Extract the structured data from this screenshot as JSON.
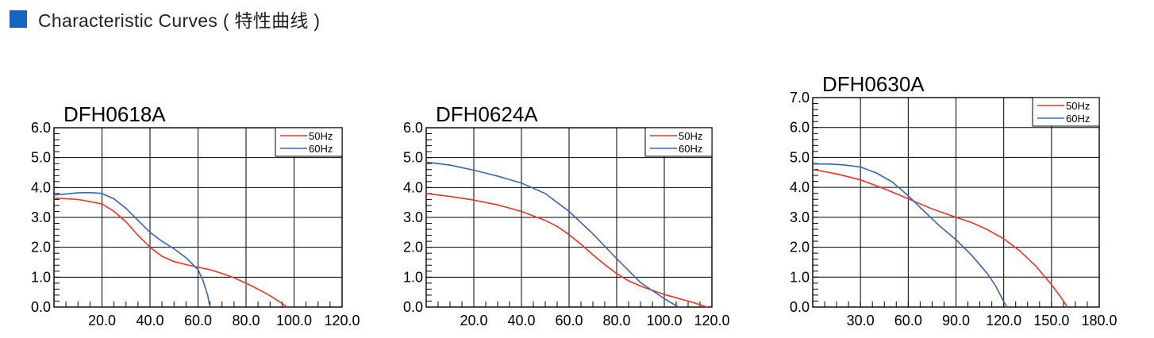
{
  "header": {
    "title": "Characteristic Curves ( 特性曲线 )",
    "marker_color": "#1565c0"
  },
  "colors": {
    "s50": "#ee3322",
    "s60": "#3a62b0"
  },
  "chart_data": [
    {
      "type": "line",
      "title": "DFH0618A",
      "xlabel": "",
      "ylabel": "",
      "xlim": [
        0,
        120
      ],
      "ylim": [
        0,
        6
      ],
      "xticks": [
        "20.0",
        "40.0",
        "60.0",
        "80.0",
        "100.0",
        "120.0"
      ],
      "yticks": [
        "0.0",
        "1.0",
        "2.0",
        "3.0",
        "4.0",
        "5.0",
        "6.0"
      ],
      "grid": true,
      "legend": "top-right",
      "series": [
        {
          "name": "50Hz",
          "x": [
            0,
            10,
            20,
            25,
            30,
            35,
            40,
            45,
            50,
            55,
            60,
            65,
            70,
            75,
            80,
            85,
            90,
            95,
            97
          ],
          "y": [
            3.65,
            3.6,
            3.45,
            3.2,
            2.85,
            2.4,
            2.0,
            1.7,
            1.52,
            1.42,
            1.33,
            1.25,
            1.12,
            0.98,
            0.8,
            0.6,
            0.38,
            0.12,
            0
          ]
        },
        {
          "name": "60Hz",
          "x": [
            0,
            10,
            15,
            20,
            25,
            30,
            35,
            40,
            45,
            50,
            55,
            60,
            62,
            64,
            65
          ],
          "y": [
            3.75,
            3.82,
            3.83,
            3.8,
            3.62,
            3.3,
            2.9,
            2.5,
            2.2,
            1.95,
            1.65,
            1.25,
            0.9,
            0.4,
            0
          ]
        }
      ]
    },
    {
      "type": "line",
      "title": "DFH0624A",
      "xlabel": "",
      "ylabel": "",
      "xlim": [
        0,
        120
      ],
      "ylim": [
        0,
        6
      ],
      "xticks": [
        "20.0",
        "40.0",
        "60.0",
        "80.0",
        "100.0",
        "120.0"
      ],
      "yticks": [
        "0.0",
        "1.0",
        "2.0",
        "3.0",
        "4.0",
        "5.0",
        "6.0"
      ],
      "grid": true,
      "legend": "top-right",
      "series": [
        {
          "name": "50Hz",
          "x": [
            0,
            10,
            20,
            30,
            40,
            50,
            55,
            60,
            65,
            70,
            75,
            80,
            85,
            90,
            100,
            110,
            115,
            118
          ],
          "y": [
            3.8,
            3.7,
            3.58,
            3.42,
            3.2,
            2.9,
            2.7,
            2.42,
            2.1,
            1.75,
            1.42,
            1.12,
            0.88,
            0.7,
            0.42,
            0.2,
            0.08,
            0
          ]
        },
        {
          "name": "60Hz",
          "x": [
            0,
            10,
            20,
            30,
            40,
            50,
            60,
            70,
            80,
            90,
            100,
            106
          ],
          "y": [
            4.85,
            4.75,
            4.58,
            4.38,
            4.15,
            3.8,
            3.2,
            2.45,
            1.62,
            0.82,
            0.28,
            0
          ]
        }
      ]
    },
    {
      "type": "line",
      "title": "DFH0630A",
      "xlabel": "",
      "ylabel": "",
      "xlim": [
        0,
        180
      ],
      "ylim": [
        0,
        7
      ],
      "xticks": [
        "30.0",
        "60.0",
        "90.0",
        "120.0",
        "150.0",
        "180.0"
      ],
      "yticks": [
        "0.0",
        "1.0",
        "2.0",
        "3.0",
        "4.0",
        "5.0",
        "6.0",
        "7.0"
      ],
      "grid": true,
      "legend": "top-right",
      "series": [
        {
          "name": "50Hz",
          "x": [
            0,
            15,
            30,
            45,
            60,
            75,
            90,
            100,
            110,
            120,
            130,
            140,
            150,
            156,
            160
          ],
          "y": [
            4.6,
            4.45,
            4.25,
            3.95,
            3.62,
            3.28,
            3.0,
            2.82,
            2.58,
            2.28,
            1.88,
            1.38,
            0.75,
            0.32,
            0
          ]
        },
        {
          "name": "60Hz",
          "x": [
            0,
            10,
            20,
            30,
            40,
            50,
            60,
            70,
            80,
            90,
            100,
            110,
            115,
            120,
            122
          ],
          "y": [
            4.78,
            4.78,
            4.75,
            4.68,
            4.48,
            4.18,
            3.72,
            3.2,
            2.7,
            2.25,
            1.72,
            1.1,
            0.7,
            0.18,
            0
          ]
        }
      ]
    }
  ]
}
